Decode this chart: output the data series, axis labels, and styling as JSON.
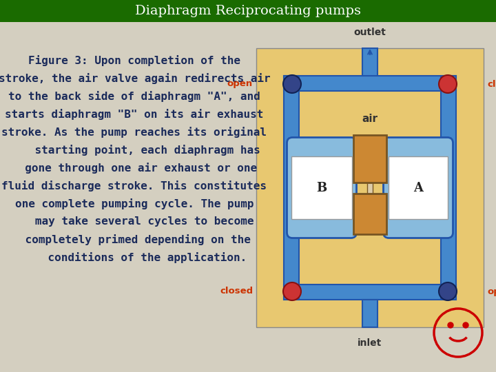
{
  "title": "Diaphragm Reciprocating pumps",
  "title_bg_color": "#1a6b00",
  "title_text_color": "#ffffff",
  "bg_color": "#d4cfc0",
  "text_color": "#1a2a5a",
  "body_text_lines": [
    "Figure 3: Upon completion of the",
    "stroke, the air valve again redirects air",
    "to the back side of diaphragm \"A\", and",
    "starts diaphragm \"B\" on its air exhaust",
    "stroke. As the pump reaches its original",
    "    starting point, each diaphragm has",
    "  gone through one air exhaust or one",
    "fluid discharge stroke. This constitutes",
    "one complete pumping cycle. The pump",
    "   may take several cycles to become",
    " completely primed depending on the",
    "    conditions of the application."
  ],
  "font_size": 11.5,
  "title_font_size": 14,
  "smiley_color": "#cc0000",
  "pipe_color": "#4488cc",
  "pipe_dark": "#2255aa",
  "diagram_bg": "#e8c870",
  "diagram_border": "#888888",
  "open_ball_color": "#334488",
  "closed_ball_color": "#cc3333",
  "valve_color": "#cc8833",
  "label_color_dark": "#333333",
  "diagram_label_color": "#cc3300",
  "outlet_inlet_color": "#333333"
}
